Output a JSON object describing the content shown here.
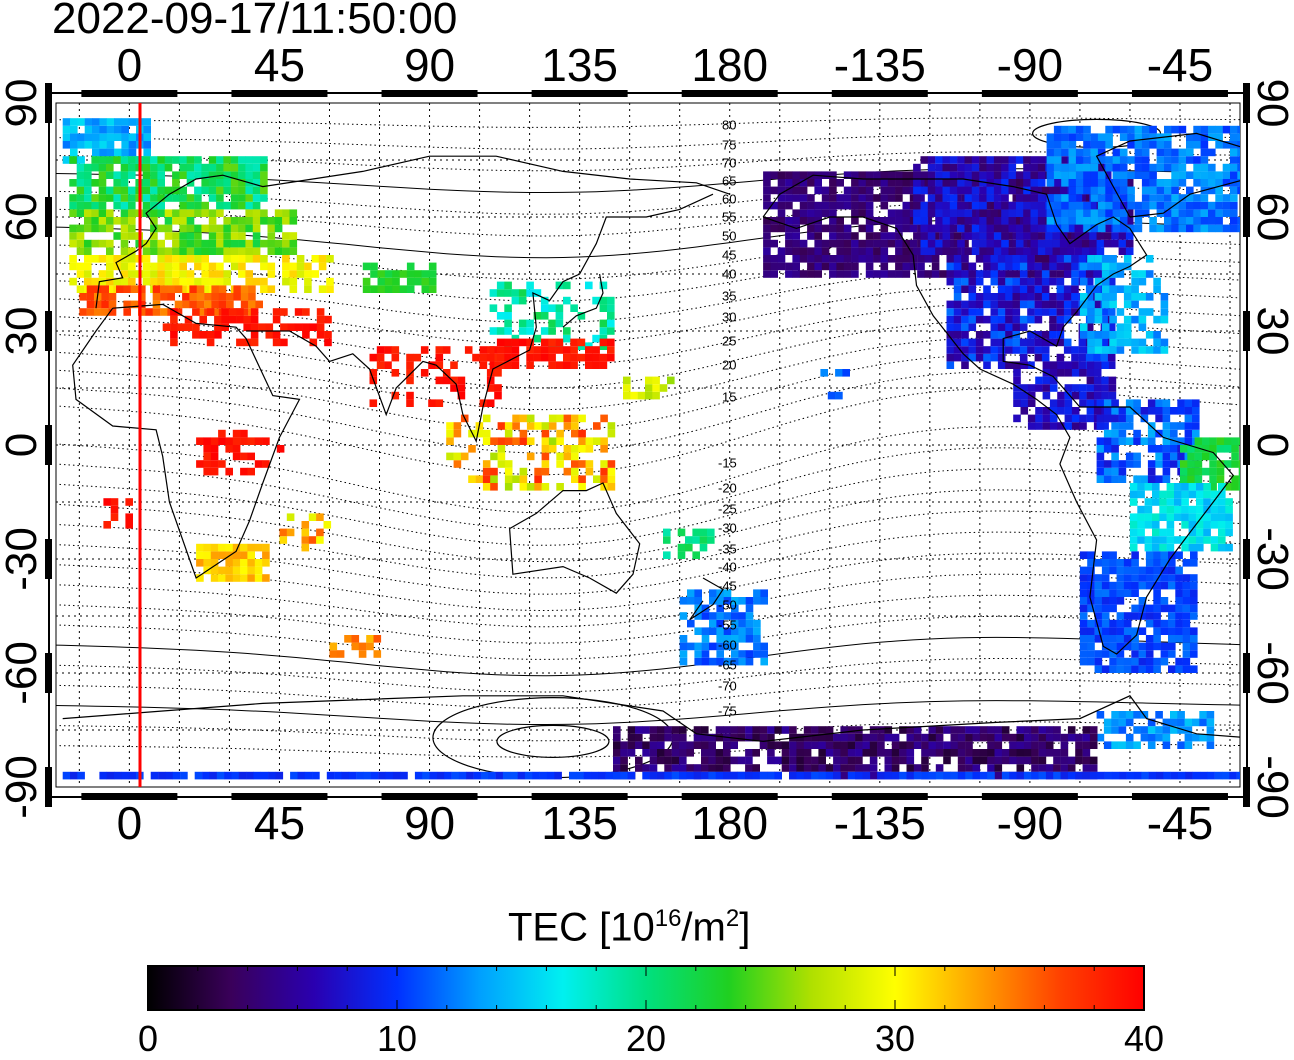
{
  "title": "2022-09-17/11:50:00",
  "x_ticks": [
    "0",
    "45",
    "90",
    "135",
    "180",
    "-135",
    "-90",
    "-45"
  ],
  "y_ticks": [
    "90",
    "60",
    "30",
    "0",
    "-30",
    "-60",
    "-90"
  ],
  "contour_labels": [
    "80",
    "75",
    "70",
    "65",
    "60",
    "55",
    "50",
    "45",
    "40",
    "35",
    "30",
    "25",
    "20",
    "15",
    "-15",
    "-20",
    "-25",
    "-30",
    "-35",
    "-40",
    "-45",
    "-50",
    "-55",
    "-60",
    "-65",
    "-70",
    "-75"
  ],
  "colorbar": {
    "label_main": "TEC  [10",
    "label_exp": "16",
    "label_mid": "/m",
    "label_exp2": "2",
    "label_end": "]",
    "ticks": [
      "0",
      "10",
      "20",
      "30",
      "40"
    ],
    "range": [
      0,
      40
    ],
    "colors": [
      "#000000",
      "#3a005a",
      "#2a00b0",
      "#0030ff",
      "#00a0ff",
      "#00f0f0",
      "#00e080",
      "#20d020",
      "#b0e000",
      "#ffff00",
      "#ffa000",
      "#ff4000",
      "#ff0000"
    ]
  },
  "chart_data": {
    "type": "heatmap",
    "title": "2022-09-17/11:50:00",
    "x_ticks": [
      0,
      45,
      90,
      135,
      180,
      -135,
      -90,
      -45
    ],
    "y_ticks": [
      90,
      60,
      30,
      0,
      -30,
      -60,
      -90
    ],
    "xlim": [
      -20,
      335
    ],
    "ylim": [
      -90,
      90
    ],
    "colorbar_range": [
      0,
      40
    ],
    "colorbar_label": "TEC [10^16/m^2]",
    "marker_longitude": 2
  }
}
